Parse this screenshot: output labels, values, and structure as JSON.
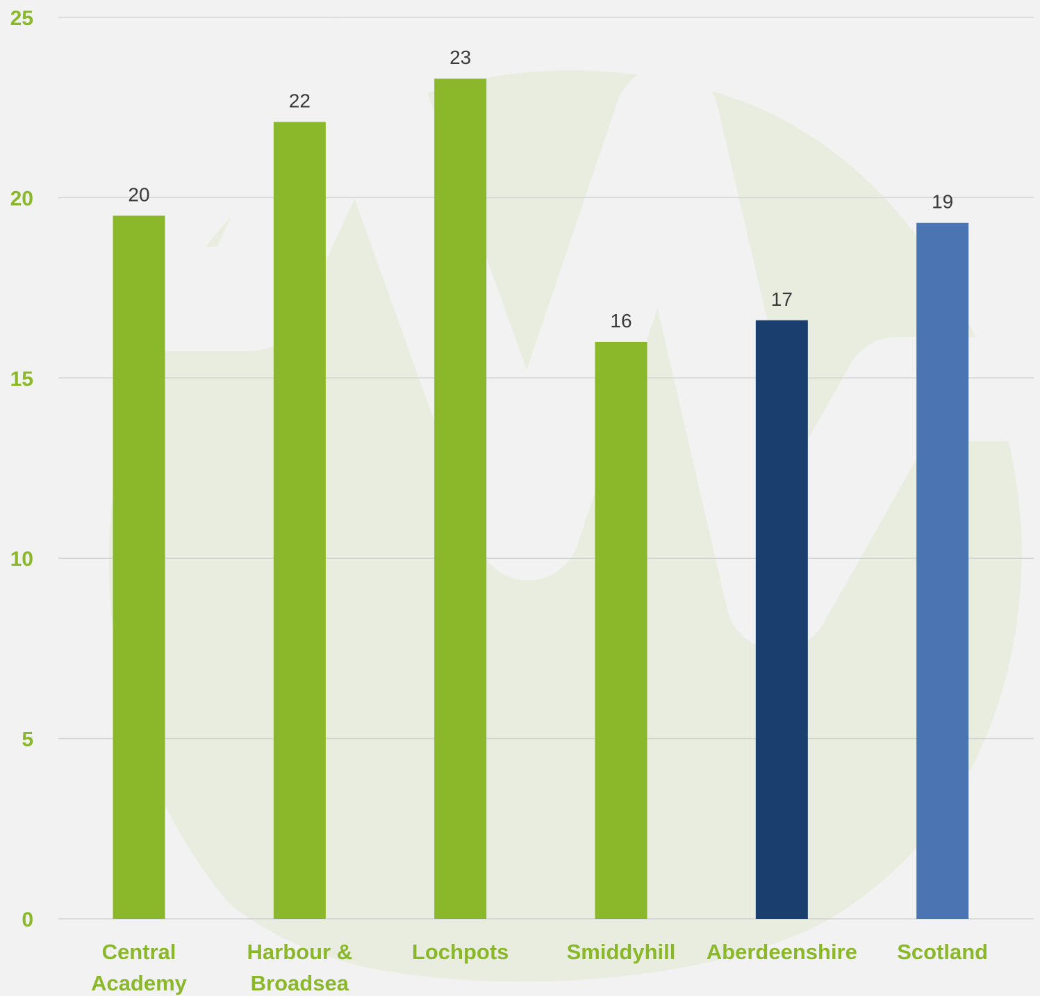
{
  "chart_data": {
    "type": "bar",
    "title": "",
    "xlabel": "",
    "ylabel": "",
    "ylim": [
      0,
      25
    ],
    "yticks": [
      0,
      5,
      10,
      15,
      20,
      25
    ],
    "grid": true,
    "legend": "none",
    "categories": [
      [
        "Central",
        "Academy"
      ],
      [
        "Harbour &",
        "Broadsea"
      ],
      [
        "Lochpots"
      ],
      [
        "Smiddyhill"
      ],
      [
        "Aberdeenshire"
      ],
      [
        "Scotland"
      ]
    ],
    "values": [
      19.5,
      22.1,
      23.3,
      16.0,
      16.6,
      19.3
    ],
    "data_labels": [
      "20",
      "22",
      "23",
      "16",
      "17",
      "19"
    ],
    "bar_colors": [
      "#8ab82a",
      "#8ab82a",
      "#8ab82a",
      "#8ab82a",
      "#1a3f6f",
      "#4a74b2"
    ]
  },
  "colors": {
    "background": "#f2f2f2",
    "axis_text": "#8ab82a",
    "gridline": "#d4d4d4",
    "watermark": "#e8ede0"
  },
  "watermark_icon": "leaf-heartbeat-logo-icon"
}
